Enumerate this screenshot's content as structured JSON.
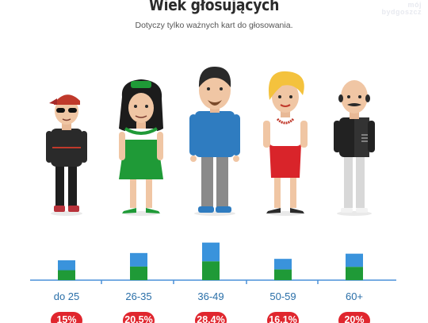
{
  "header": {
    "title": "Wiek głosujących",
    "subtitle": "Dotyczy tylko ważnych kart do głosowania.",
    "watermark_line1": "mój",
    "watermark_line2": "bydgoszcz"
  },
  "icons": [
    "teen-boy-icon",
    "young-woman-icon",
    "man-blue-shirt-icon",
    "blonde-woman-icon",
    "old-man-icon"
  ],
  "colors": {
    "bar_top": "#3a93dc",
    "bar_bottom": "#1f9a37",
    "axis": "#4a90d9",
    "label": "#2a6fa8",
    "badge": "#e0262e"
  },
  "chart_data": {
    "type": "bar",
    "title": "Wiek głosujących",
    "subtitle": "Dotyczy tylko ważnych kart do głosowania.",
    "categories": [
      "do 25",
      "26-35",
      "36-49",
      "50-59",
      "60+"
    ],
    "values": [
      15,
      20.5,
      28.4,
      16.1,
      20
    ],
    "value_labels": [
      "15%",
      "20.5%",
      "28.4%",
      "16.1%",
      "20%"
    ],
    "unit": "%",
    "ylim": [
      0,
      30
    ],
    "grid": false,
    "legend": "none"
  }
}
